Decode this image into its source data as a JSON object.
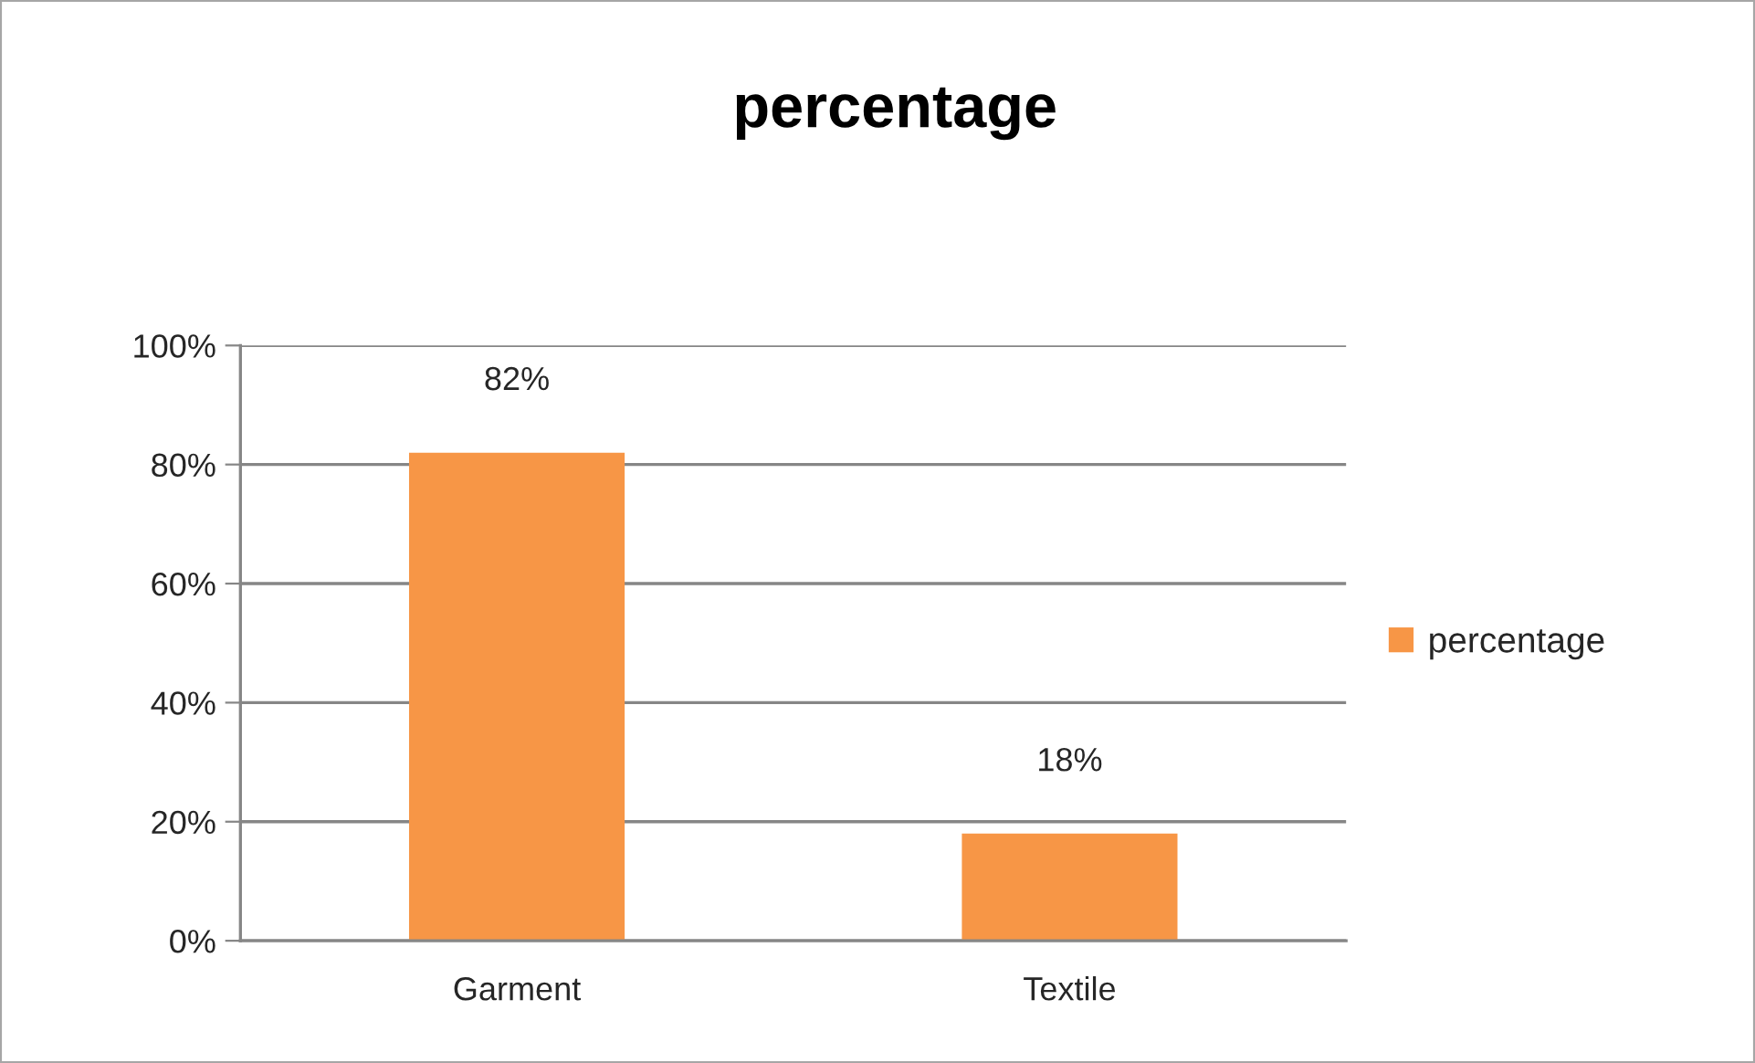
{
  "chart_data": {
    "type": "bar",
    "title": "percentage",
    "categories": [
      "Garment",
      "Textile"
    ],
    "series": [
      {
        "name": "percentage",
        "color": "#f79646",
        "values": [
          82,
          18
        ]
      }
    ],
    "value_labels": [
      "82%",
      "18%"
    ],
    "ylim": [
      0,
      100
    ],
    "yticks": [
      {
        "value": 0,
        "label": "0%"
      },
      {
        "value": 20,
        "label": "20%"
      },
      {
        "value": 40,
        "label": "40%"
      },
      {
        "value": 60,
        "label": "60%"
      },
      {
        "value": 80,
        "label": "80%"
      },
      {
        "value": 100,
        "label": "100%"
      }
    ],
    "grid": "y",
    "legend": "right"
  }
}
